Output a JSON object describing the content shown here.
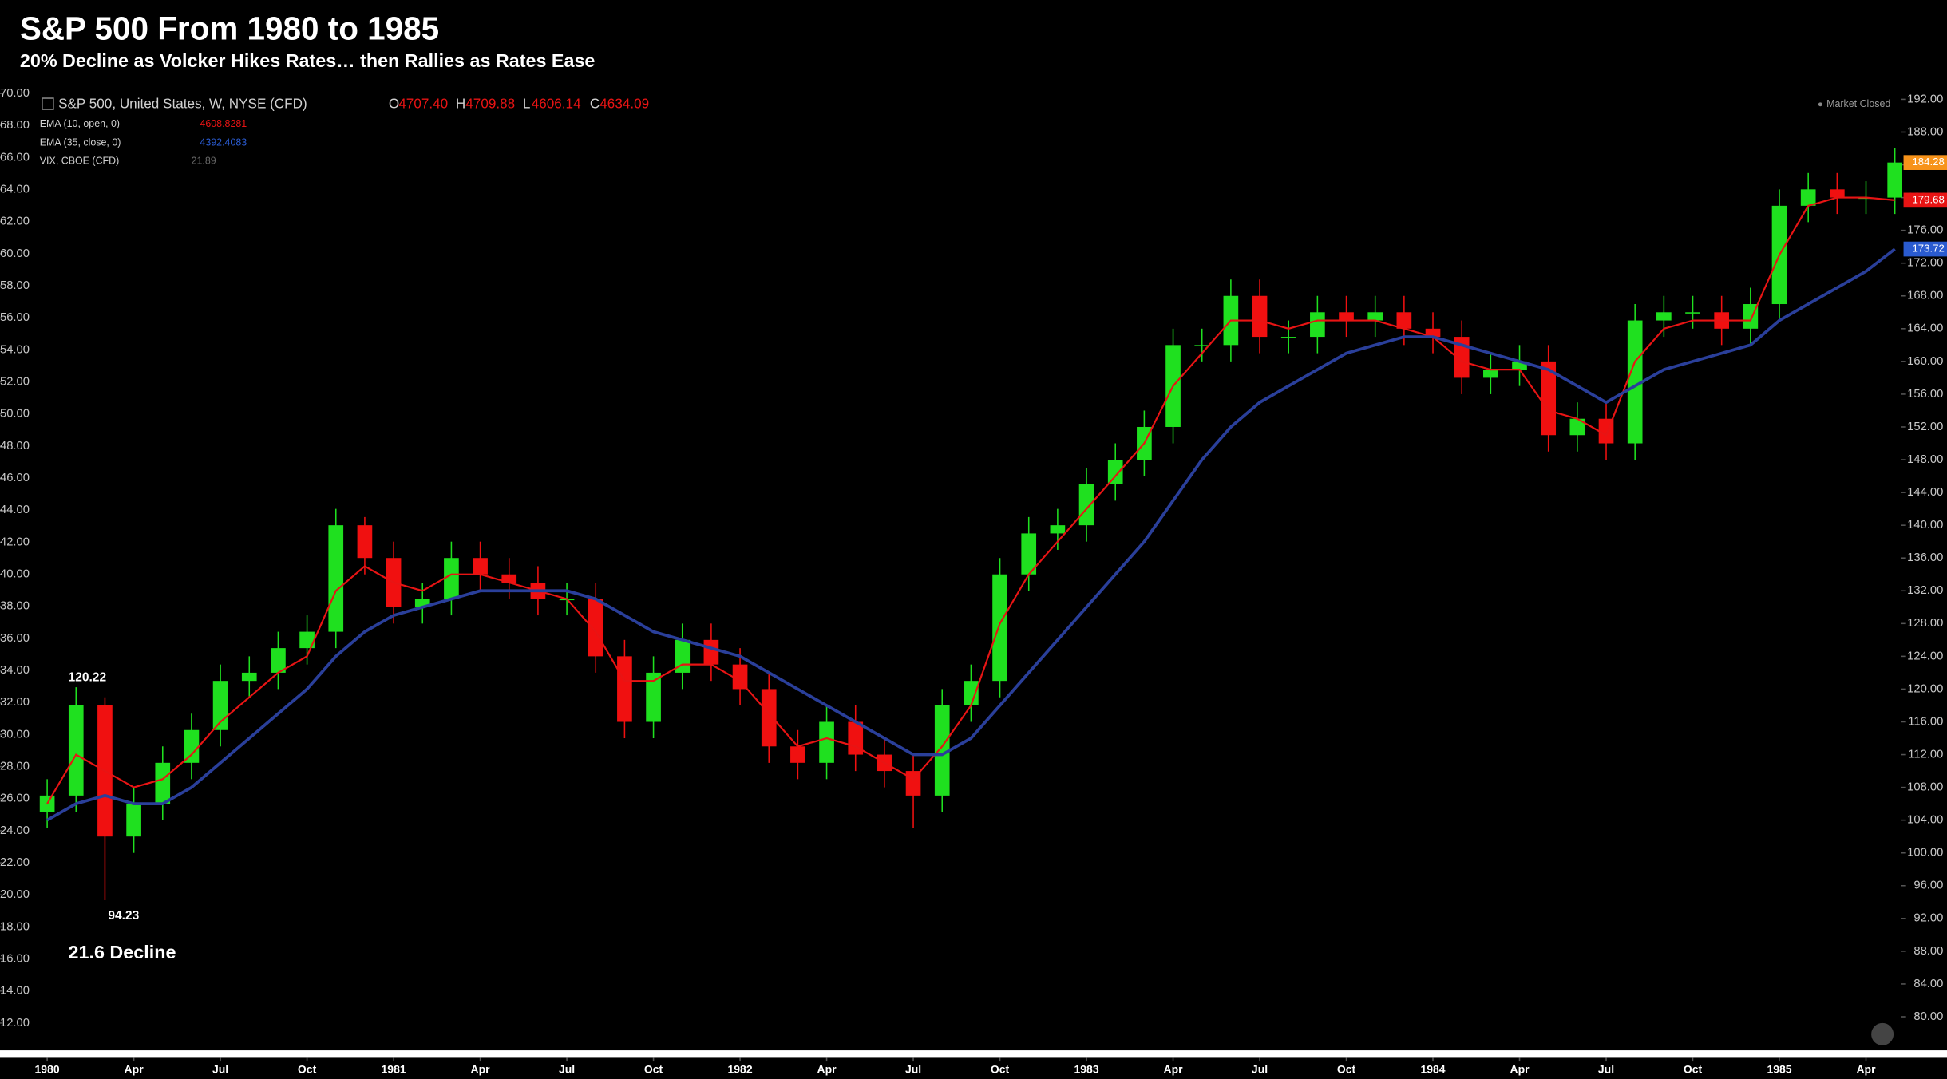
{
  "chart_data": {
    "type": "candlestick",
    "title": "S&P 500 From 1980 to 1985",
    "subtitle": "20% Decline as Volcker Hikes Rates… then Rallies as Rates Ease",
    "header": {
      "symbol": "S&P 500, United States, W, NYSE (CFD)",
      "o": "O",
      "open": "4707.40",
      "h": "H",
      "high": "4709.88",
      "l": "L",
      "low": "4606.14",
      "c": "C",
      "close": "4634.09",
      "vix_name": "VIX, CBOE (CFD)",
      "vix_value": "21.89",
      "status": "Market Closed"
    },
    "annotations": [
      "120.22",
      "94.23",
      "21.6 Decline"
    ],
    "x": [
      "1980-01",
      "1980-02",
      "1980-03",
      "1980-04",
      "1980-05",
      "1980-06",
      "1980-07",
      "1980-08",
      "1980-09",
      "1980-10",
      "1980-11",
      "1980-12",
      "1981-01",
      "1981-02",
      "1981-03",
      "1981-04",
      "1981-05",
      "1981-06",
      "1981-07",
      "1981-08",
      "1981-09",
      "1981-10",
      "1981-11",
      "1981-12",
      "1982-01",
      "1982-02",
      "1982-03",
      "1982-04",
      "1982-05",
      "1982-06",
      "1982-07",
      "1982-08",
      "1982-09",
      "1982-10",
      "1982-11",
      "1982-12",
      "1983-01",
      "1983-02",
      "1983-03",
      "1983-04",
      "1983-05",
      "1983-06",
      "1983-07",
      "1983-08",
      "1983-09",
      "1983-10",
      "1983-11",
      "1983-12",
      "1984-01",
      "1984-02",
      "1984-03",
      "1984-04",
      "1984-05",
      "1984-06",
      "1984-07",
      "1984-08",
      "1984-09",
      "1984-10",
      "1984-11",
      "1984-12",
      "1985-01",
      "1985-02",
      "1985-03",
      "1985-04",
      "1985-05"
    ],
    "open": [
      105,
      107,
      118,
      102,
      106,
      111,
      115,
      121,
      122,
      125,
      127,
      140,
      136,
      130,
      131,
      136,
      134,
      133,
      131,
      131,
      124,
      116,
      122,
      126,
      123,
      120,
      113,
      111,
      116,
      112,
      110,
      107,
      118,
      121,
      134,
      139,
      140,
      145,
      148,
      152,
      162,
      162,
      168,
      163,
      163,
      166,
      165,
      166,
      164,
      163,
      158,
      159,
      160,
      151,
      153,
      150,
      165,
      166,
      166,
      164,
      167,
      179,
      181,
      180,
      180
    ],
    "high": [
      109,
      120.22,
      119,
      108,
      113,
      117,
      123,
      124,
      127,
      129,
      142,
      141,
      138,
      133,
      138,
      138,
      136,
      135,
      133,
      133,
      126,
      124,
      128,
      128,
      125,
      122,
      115,
      118,
      118,
      114,
      112,
      120,
      123,
      136,
      141,
      142,
      147,
      150,
      154,
      164,
      164,
      170,
      170,
      165,
      168,
      168,
      168,
      168,
      166,
      165,
      161,
      162,
      162,
      155,
      155,
      167,
      168,
      168,
      168,
      169,
      181,
      183,
      183,
      182,
      186
    ],
    "low": [
      103,
      105,
      94.23,
      100,
      104,
      109,
      113,
      119,
      120,
      123,
      125,
      134,
      128,
      128,
      129,
      132,
      131,
      129,
      129,
      122,
      114,
      114,
      120,
      121,
      118,
      111,
      109,
      109,
      110,
      108,
      103,
      105,
      116,
      119,
      132,
      137,
      138,
      143,
      146,
      150,
      160,
      160,
      161,
      161,
      161,
      163,
      163,
      162,
      161,
      156,
      156,
      157,
      149,
      149,
      148,
      148,
      163,
      164,
      162,
      162,
      165,
      177,
      178,
      178,
      178
    ],
    "close": [
      107,
      118,
      102,
      106,
      111,
      115,
      121,
      122,
      125,
      127,
      140,
      136,
      130,
      131,
      136,
      134,
      133,
      131,
      131,
      124,
      116,
      122,
      126,
      123,
      120,
      113,
      111,
      116,
      112,
      110,
      107,
      118,
      121,
      134,
      139,
      140,
      145,
      148,
      152,
      162,
      162,
      168,
      163,
      163,
      166,
      165,
      166,
      164,
      163,
      158,
      159,
      160,
      151,
      153,
      150,
      165,
      166,
      166,
      164,
      167,
      179,
      181,
      180,
      180,
      184.28
    ],
    "up_color": "#1fe01f",
    "down_color": "#f01010",
    "series": [
      {
        "name": "EMA (10, open, 0)",
        "last": "4608.8281",
        "color": "#e81414",
        "values": [
          106,
          112,
          110,
          108,
          109,
          112,
          116,
          119,
          122,
          124,
          132,
          135,
          133,
          132,
          134,
          134,
          133,
          132,
          131,
          127,
          121,
          121,
          123,
          123,
          121,
          117,
          113,
          114,
          113,
          111,
          109,
          113,
          118,
          128,
          134,
          138,
          142,
          146,
          150,
          157,
          161,
          165,
          165,
          164,
          165,
          165,
          165,
          164,
          163,
          160,
          159,
          159,
          154,
          153,
          151,
          160,
          164,
          165,
          165,
          165,
          173,
          179,
          180,
          180,
          179.68
        ]
      },
      {
        "name": "EMA (35, close, 0)",
        "last": "4392.4083",
        "color": "#2a3f9a",
        "values": [
          104,
          106,
          107,
          106,
          106,
          108,
          111,
          114,
          117,
          120,
          124,
          127,
          129,
          130,
          131,
          132,
          132,
          132,
          132,
          131,
          129,
          127,
          126,
          125,
          124,
          122,
          120,
          118,
          116,
          114,
          112,
          112,
          114,
          118,
          122,
          126,
          130,
          134,
          138,
          143,
          148,
          152,
          155,
          157,
          159,
          161,
          162,
          163,
          163,
          162,
          161,
          160,
          159,
          157,
          155,
          157,
          159,
          160,
          161,
          162,
          165,
          167,
          169,
          171,
          173.72
        ]
      }
    ],
    "price_tags": [
      {
        "value": 184.28,
        "color": "#f7931a"
      },
      {
        "value": 179.68,
        "color": "#e81414"
      },
      {
        "value": 173.72,
        "color": "#2a5bd0"
      }
    ],
    "ylim": [
      75.9,
      193.5
    ],
    "yticks": [
      {
        "value": 80,
        "label": "80.00"
      },
      {
        "value": 84,
        "label": "84.00"
      },
      {
        "value": 88,
        "label": "88.00"
      },
      {
        "value": 92,
        "label": "92.00"
      },
      {
        "value": 96,
        "label": "96.00"
      },
      {
        "value": 100,
        "label": "100.00"
      },
      {
        "value": 104,
        "label": "104.00"
      },
      {
        "value": 108,
        "label": "108.00"
      },
      {
        "value": 112,
        "label": "112.00"
      },
      {
        "value": 116,
        "label": "116.00"
      },
      {
        "value": 120,
        "label": "120.00"
      },
      {
        "value": 124,
        "label": "124.00"
      },
      {
        "value": 128,
        "label": "128.00"
      },
      {
        "value": 132,
        "label": "132.00"
      },
      {
        "value": 136,
        "label": "136.00"
      },
      {
        "value": 140,
        "label": "140.00"
      },
      {
        "value": 144,
        "label": "144.00"
      },
      {
        "value": 148,
        "label": "148.00"
      },
      {
        "value": 152,
        "label": "152.00"
      },
      {
        "value": 156,
        "label": "156.00"
      },
      {
        "value": 160,
        "label": "160.00"
      },
      {
        "value": 164,
        "label": "164.00"
      },
      {
        "value": 168,
        "label": "168.00"
      },
      {
        "value": 172,
        "label": "172.00"
      },
      {
        "value": 176,
        "label": "176.00"
      },
      {
        "value": 180,
        "label": "180.00"
      },
      {
        "value": 184,
        "label": "184.00"
      },
      {
        "value": 188,
        "label": "188.00"
      },
      {
        "value": 192,
        "label": "192.00"
      }
    ],
    "y2lim": [
      10.3,
      70.4
    ],
    "y2ticks": [
      {
        "value": 12,
        "label": "12.00"
      },
      {
        "value": 14,
        "label": "14.00"
      },
      {
        "value": 16,
        "label": "16.00"
      },
      {
        "value": 18,
        "label": "18.00"
      },
      {
        "value": 20,
        "label": "20.00"
      },
      {
        "value": 22,
        "label": "22.00"
      },
      {
        "value": 24,
        "label": "24.00"
      },
      {
        "value": 26,
        "label": "26.00"
      },
      {
        "value": 28,
        "label": "28.00"
      },
      {
        "value": 30,
        "label": "30.00"
      },
      {
        "value": 32,
        "label": "32.00"
      },
      {
        "value": 34,
        "label": "34.00"
      },
      {
        "value": 36,
        "label": "36.00"
      },
      {
        "value": 38,
        "label": "38.00"
      },
      {
        "value": 40,
        "label": "40.00"
      },
      {
        "value": 42,
        "label": "42.00"
      },
      {
        "value": 44,
        "label": "44.00"
      },
      {
        "value": 46,
        "label": "46.00"
      },
      {
        "value": 48,
        "label": "48.00"
      },
      {
        "value": 50,
        "label": "50.00"
      },
      {
        "value": 52,
        "label": "52.00"
      },
      {
        "value": 54,
        "label": "54.00"
      },
      {
        "value": 56,
        "label": "56.00"
      },
      {
        "value": 58,
        "label": "58.00"
      },
      {
        "value": 60,
        "label": "60.00"
      },
      {
        "value": 62,
        "label": "62.00"
      },
      {
        "value": 64,
        "label": "64.00"
      },
      {
        "value": 66,
        "label": "66.00"
      },
      {
        "value": 68,
        "label": "68.00"
      },
      {
        "value": 70,
        "label": "70.00"
      }
    ],
    "xticks": [
      {
        "value": "1980-01",
        "label": "1980"
      },
      {
        "value": "1980-04",
        "label": "Apr"
      },
      {
        "value": "1980-07",
        "label": "Jul"
      },
      {
        "value": "1980-10",
        "label": "Oct"
      },
      {
        "value": "1981-01",
        "label": "1981"
      },
      {
        "value": "1981-04",
        "label": "Apr"
      },
      {
        "value": "1981-07",
        "label": "Jul"
      },
      {
        "value": "1981-10",
        "label": "Oct"
      },
      {
        "value": "1982-01",
        "label": "1982"
      },
      {
        "value": "1982-04",
        "label": "Apr"
      },
      {
        "value": "1982-07",
        "label": "Jul"
      },
      {
        "value": "1982-10",
        "label": "Oct"
      },
      {
        "value": "1983-01",
        "label": "1983"
      },
      {
        "value": "1983-04",
        "label": "Apr"
      },
      {
        "value": "1983-07",
        "label": "Jul"
      },
      {
        "value": "1983-10",
        "label": "Oct"
      },
      {
        "value": "1984-01",
        "label": "1984"
      },
      {
        "value": "1984-04",
        "label": "Apr"
      },
      {
        "value": "1984-07",
        "label": "Jul"
      },
      {
        "value": "1984-10",
        "label": "Oct"
      },
      {
        "value": "1985-01",
        "label": "1985"
      },
      {
        "value": "1985-04",
        "label": "Apr"
      }
    ]
  }
}
